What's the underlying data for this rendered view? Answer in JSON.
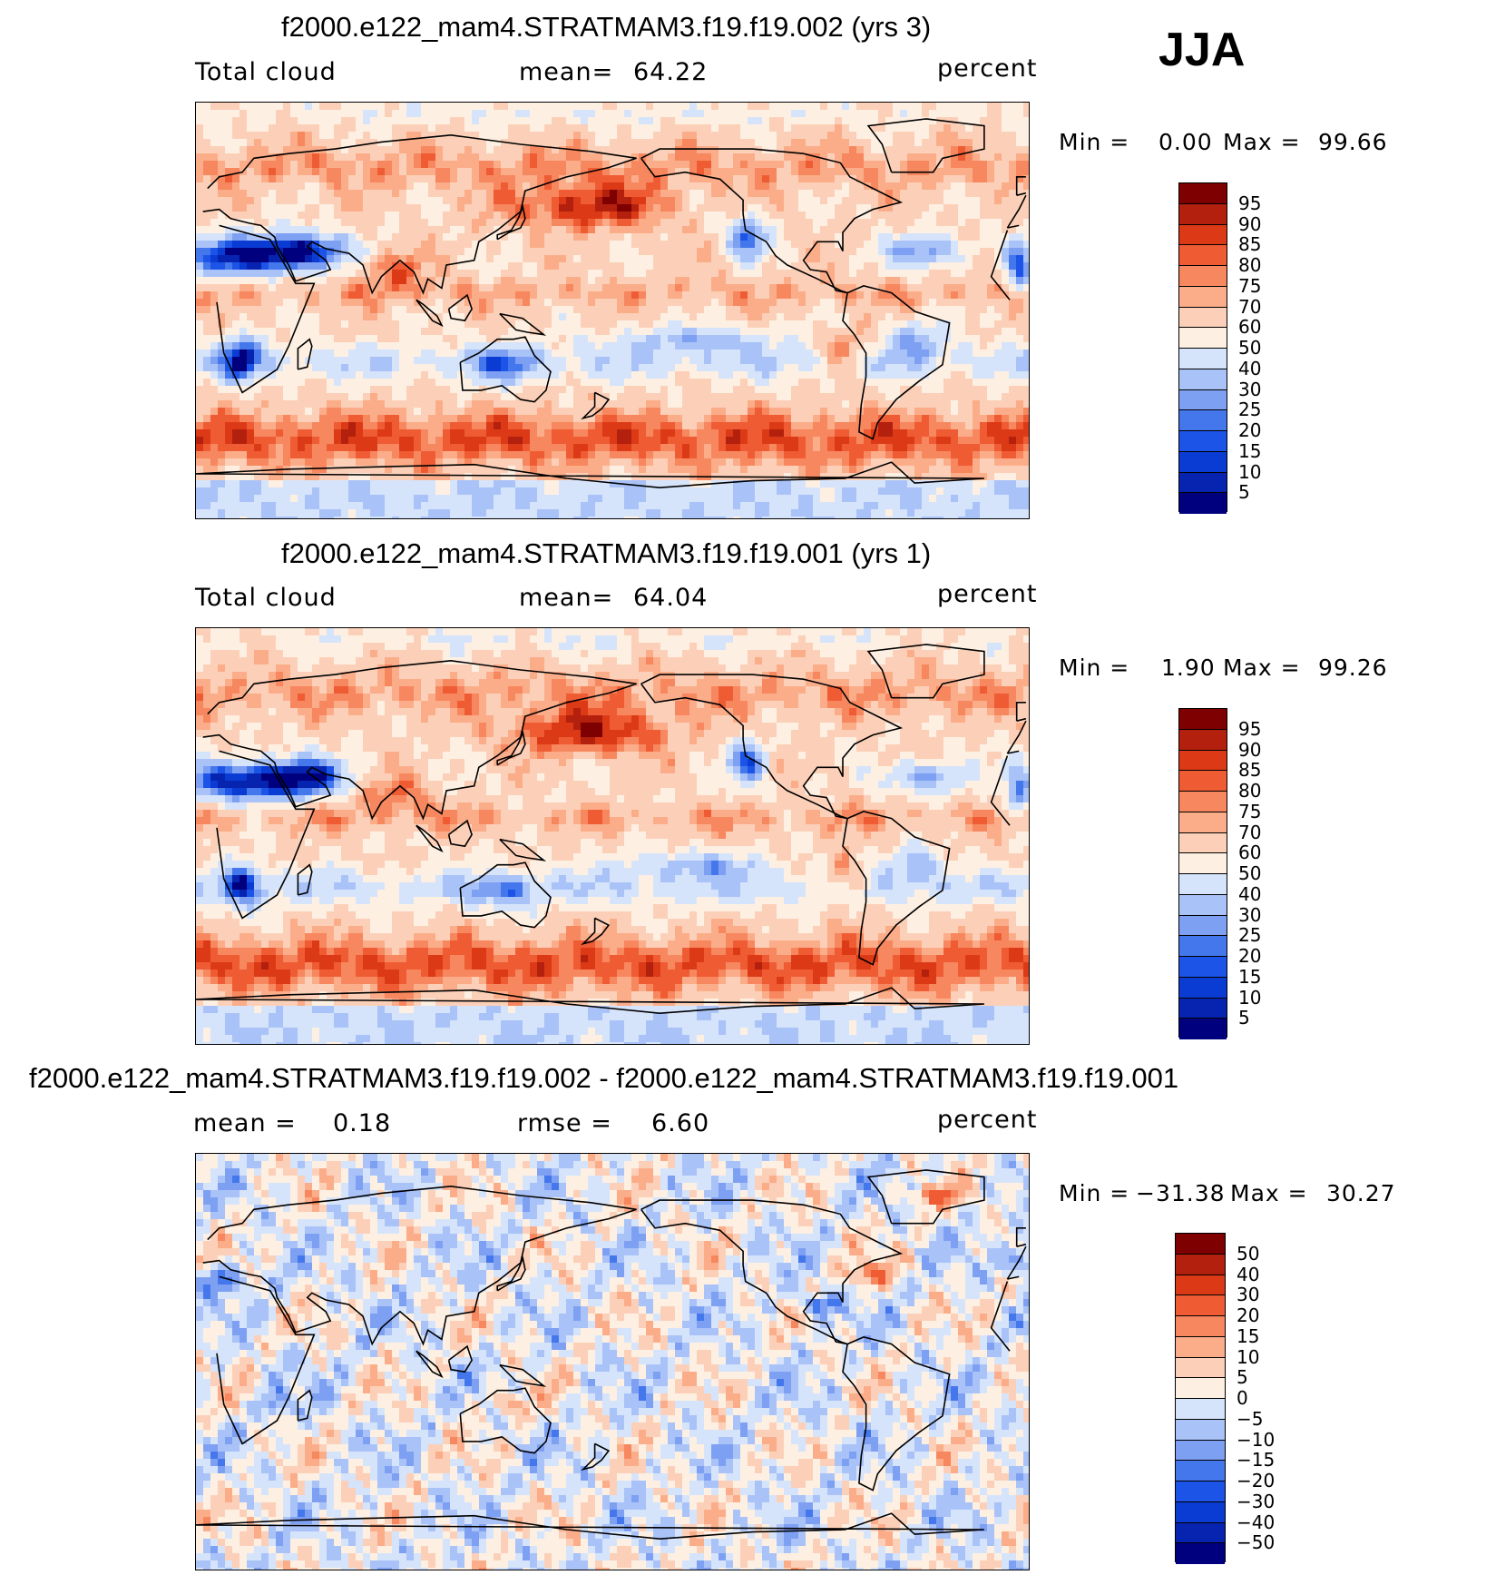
{
  "season": "JJA",
  "colors": {
    "seq": [
      "#00007f",
      "#0624b0",
      "#0a3bd2",
      "#1d54e8",
      "#4477ec",
      "#7ea0f2",
      "#a9c2f7",
      "#d6e4fb",
      "#fdf0e2",
      "#fcd0b8",
      "#fbad8a",
      "#f7875e",
      "#ef5c34",
      "#dc3a16",
      "#b3200e",
      "#7f0000"
    ],
    "diff": [
      "#00007f",
      "#0624b0",
      "#0a3bd2",
      "#1d54e8",
      "#4477ec",
      "#7ea0f2",
      "#a9c2f7",
      "#d6e4fb",
      "#fdf0e2",
      "#fcd0b8",
      "#fbad8a",
      "#f7875e",
      "#ef5c34",
      "#dc3a16",
      "#b3200e",
      "#7f0000"
    ]
  },
  "chart_data": [
    {
      "type": "heatmap",
      "title": "f2000.e122_mam4.STRATMAM3.f19.f19.002 (yrs 3)",
      "left_label": "Total cloud",
      "mean_label": "mean=",
      "mean_value": "64.22",
      "units": "percent",
      "min_label": "Min =",
      "min_value": "0.00",
      "max_label": "Max =",
      "max_value": "99.66",
      "levels": [
        "95",
        "90",
        "85",
        "80",
        "75",
        "70",
        "60",
        "50",
        "40",
        "30",
        "25",
        "20",
        "15",
        "10",
        "5"
      ],
      "zlim": [
        0,
        100
      ],
      "field": "total_cloud_exp"
    },
    {
      "type": "heatmap",
      "title": "f2000.e122_mam4.STRATMAM3.f19.f19.001 (yrs 1)",
      "left_label": "Total cloud",
      "mean_label": "mean=",
      "mean_value": "64.04",
      "units": "percent",
      "min_label": "Min =",
      "min_value": "1.90",
      "max_label": "Max =",
      "max_value": "99.26",
      "levels": [
        "95",
        "90",
        "85",
        "80",
        "75",
        "70",
        "60",
        "50",
        "40",
        "30",
        "25",
        "20",
        "15",
        "10",
        "5"
      ],
      "zlim": [
        0,
        100
      ],
      "field": "total_cloud_ctl"
    },
    {
      "type": "heatmap",
      "title": "f2000.e122_mam4.STRATMAM3.f19.f19.002 - f2000.e122_mam4.STRATMAM3.f19.f19.001",
      "left_label": "mean =",
      "left_value": "0.18",
      "mean_label": "rmse =",
      "mean_value": "6.60",
      "units": "percent",
      "min_label": "Min =",
      "min_value": "−31.38",
      "max_label": "Max =",
      "max_value": "30.27",
      "levels": [
        "50",
        "40",
        "30",
        "20",
        "15",
        "10",
        "5",
        "0",
        "−5",
        "−10",
        "−15",
        "−20",
        "−30",
        "−40",
        "−50"
      ],
      "zlim": [
        -50,
        50
      ],
      "field": "total_cloud_diff"
    }
  ]
}
